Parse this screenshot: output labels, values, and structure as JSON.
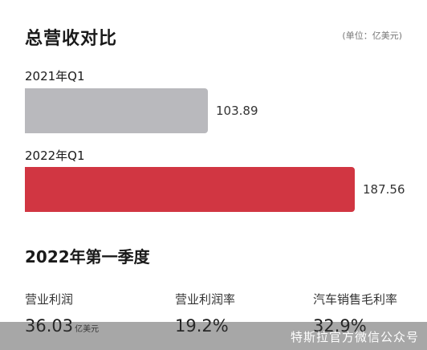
{
  "chart_data": {
    "type": "bar",
    "title": "总营收对比",
    "unit_note": "(单位：亿美元)",
    "categories": [
      "2021年Q1",
      "2022年Q1"
    ],
    "values": [
      103.89,
      187.56
    ],
    "value_labels": [
      "103.89",
      "187.56"
    ],
    "colors": [
      "#b9b9bd",
      "#d13642"
    ],
    "orientation": "horizontal",
    "xlim": [
      0,
      187.56
    ],
    "grid": false
  },
  "metrics_section": {
    "title": "2022年第一季度",
    "items": [
      {
        "label": "营业利润",
        "value": "36.03",
        "unit": "亿美元"
      },
      {
        "label": "营业利润率",
        "value": "19.2%",
        "unit": ""
      },
      {
        "label": "汽车销售毛利率",
        "value": "32.9%",
        "unit": ""
      }
    ]
  },
  "watermark": "特斯拉官方微信公众号"
}
